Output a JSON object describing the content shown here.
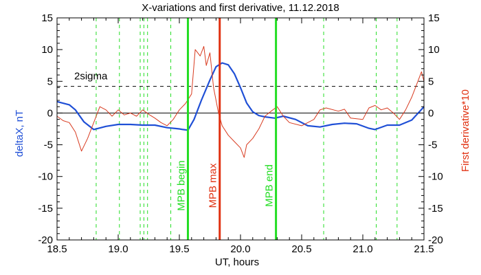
{
  "chart_data": {
    "type": "line",
    "title": "X-variations and first derivative, 11.12.2018",
    "xlabel": "UT, hours",
    "ylabel_left": "deltaX, nT",
    "ylabel_right": "First derivative*10",
    "xlim": [
      18.5,
      21.5
    ],
    "ylim": [
      -20,
      15
    ],
    "x_ticks": [
      18.5,
      19.0,
      19.5,
      20.0,
      20.5,
      21.0,
      21.5
    ],
    "x_tick_labels": [
      "18.5",
      "19.0",
      "19.5",
      "20.0",
      "20.5",
      "21.0",
      "21.5"
    ],
    "y_ticks": [
      -20,
      -15,
      -10,
      -5,
      0,
      5,
      10,
      15
    ],
    "y_tick_labels": [
      "-20",
      "-15",
      "-10",
      "-5",
      "0",
      "5",
      "10",
      "15"
    ],
    "grid": false,
    "colors": {
      "deltaX": "#1f4fd6",
      "derivative": "#d83a1f",
      "markers": "#22dd22",
      "mpb_max": "#e03010"
    },
    "series": [
      {
        "name": "deltaX, nT",
        "axis": "left",
        "x": [
          18.5,
          18.6,
          18.65,
          18.72,
          18.8,
          18.9,
          19.0,
          19.1,
          19.2,
          19.3,
          19.4,
          19.5,
          19.53,
          19.57,
          19.62,
          19.68,
          19.75,
          19.8,
          19.85,
          19.9,
          19.95,
          20.0,
          20.05,
          20.1,
          20.15,
          20.2,
          20.28,
          20.35,
          20.45,
          20.55,
          20.65,
          20.75,
          20.85,
          20.95,
          21.05,
          21.1,
          21.2,
          21.3,
          21.4,
          21.5
        ],
        "y": [
          1.8,
          1.3,
          0.5,
          -1.4,
          -2.6,
          -2.1,
          -1.8,
          -1.8,
          -1.9,
          -1.9,
          -2.3,
          -2.5,
          -2.6,
          -2.7,
          -1.0,
          2.0,
          5.2,
          7.3,
          7.9,
          7.6,
          6.2,
          4.0,
          1.6,
          0.2,
          -0.4,
          -0.6,
          -0.8,
          -0.5,
          -1.0,
          -2.0,
          -2.2,
          -1.8,
          -1.6,
          -1.7,
          -2.4,
          -2.6,
          -1.9,
          -1.9,
          -1.1,
          1.0
        ]
      },
      {
        "name": "First derivative*10",
        "axis": "right",
        "x": [
          18.5,
          18.55,
          18.6,
          18.65,
          18.7,
          18.75,
          18.8,
          18.85,
          18.9,
          18.95,
          19.0,
          19.05,
          19.1,
          19.15,
          19.2,
          19.25,
          19.3,
          19.35,
          19.4,
          19.45,
          19.5,
          19.55,
          19.6,
          19.63,
          19.67,
          19.7,
          19.72,
          19.75,
          19.78,
          19.82,
          19.85,
          19.9,
          19.95,
          20.0,
          20.03,
          20.05,
          20.1,
          20.15,
          20.2,
          20.25,
          20.3,
          20.35,
          20.4,
          20.5,
          20.6,
          20.65,
          20.7,
          20.8,
          20.85,
          20.9,
          21.0,
          21.05,
          21.1,
          21.15,
          21.2,
          21.25,
          21.3,
          21.35,
          21.4,
          21.45,
          21.48,
          21.5
        ],
        "y": [
          -0.5,
          -1.2,
          -1.5,
          -3.0,
          -6.0,
          -4.0,
          -1.5,
          1.0,
          0.5,
          -0.5,
          0.5,
          -0.3,
          0.0,
          -0.5,
          0.5,
          -0.2,
          -0.8,
          -1.5,
          -2.0,
          -1.0,
          0.5,
          1.5,
          3.0,
          10.0,
          9.0,
          10.5,
          7.5,
          9.5,
          4.0,
          0.0,
          -2.0,
          -3.5,
          -4.5,
          -5.5,
          -7.0,
          -5.0,
          -4.0,
          -2.5,
          -0.5,
          0.3,
          1.0,
          -0.5,
          -1.5,
          -2.0,
          -1.0,
          0.5,
          0.8,
          0.3,
          0.6,
          -0.8,
          -1.0,
          0.8,
          1.2,
          0.5,
          0.8,
          0.0,
          -1.0,
          0.5,
          2.5,
          5.0,
          6.5,
          5.0
        ]
      }
    ],
    "hlines": [
      {
        "y": 4.2,
        "label": "2sigma",
        "style": "dashed",
        "color": "#000000"
      },
      {
        "y": 0,
        "style": "solid",
        "color": "#000000"
      }
    ],
    "vlines_dashed": [
      18.82,
      19.01,
      19.18,
      19.21,
      19.24,
      19.43,
      20.68,
      21.11,
      21.28
    ],
    "markers": [
      {
        "x": 19.57,
        "label": "MPB begin",
        "color": "#22dd22"
      },
      {
        "x": 19.83,
        "label": "MPB max",
        "color": "#e03010"
      },
      {
        "x": 20.29,
        "label": "MPB end",
        "color": "#22dd22"
      }
    ]
  }
}
